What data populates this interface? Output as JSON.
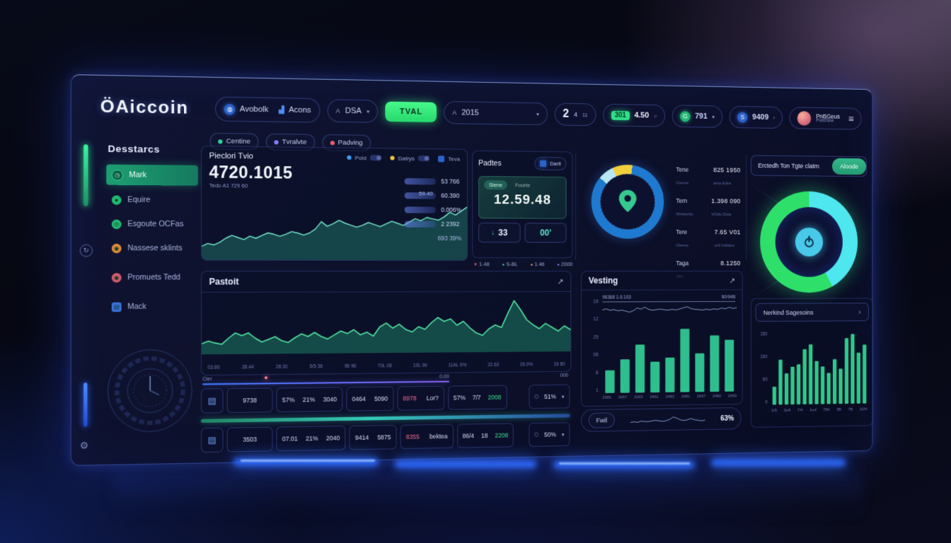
{
  "header": {
    "logo": "ÖAiccoin",
    "nav_group": [
      {
        "label": "Avobolk"
      },
      {
        "label": "Acons"
      }
    ],
    "dsa": {
      "prefix": "A",
      "label": "DSA"
    },
    "tval": "TVAL",
    "year": {
      "prefix": "A",
      "label": "2015"
    },
    "stat": {
      "big": "2",
      "s1": "4",
      "s2": "11"
    },
    "price": {
      "badge": "301",
      "value": "4.50"
    },
    "g791": "791",
    "b9409": "9409",
    "profile": {
      "name": "PnBGeus",
      "sub": "Puechow"
    }
  },
  "subnav": [
    {
      "label": "Centine",
      "color": "#2fd79a"
    },
    {
      "label": "Tvralvte",
      "color": "#8a7df2"
    },
    {
      "label": "Padving",
      "color": "#f25d6d"
    }
  ],
  "sidebar": {
    "title": "Desstarcs",
    "items": [
      {
        "label": "Mark"
      },
      {
        "label": "Equire"
      },
      {
        "label": "Esgoute OCFas"
      },
      {
        "label": "Nassese sklints"
      },
      {
        "label": "Promuets Tedd"
      },
      {
        "label": "Mack"
      }
    ]
  },
  "main_panel": {
    "title": "Pieclori Tvio",
    "legend": [
      {
        "label": "Poid"
      },
      {
        "label": "Datrys"
      },
      {
        "label": "Teva"
      }
    ],
    "big": "4720.1015",
    "sub": "Tedo A1 729 60",
    "float_value": "59.40",
    "pills": [
      {
        "value": "53 766"
      },
      {
        "value": "60.390"
      },
      {
        "value": "0.006%"
      },
      {
        "value": "2 2392"
      }
    ],
    "footer": "693 39%"
  },
  "padtes": {
    "title": "Padtes",
    "button": "Dartl",
    "tab1": "Siene",
    "tab2": "Fourte",
    "big": "12.59.48",
    "box1": "33",
    "box2": "00'",
    "legend": [
      {
        "label": "1.48"
      },
      {
        "label": "S-BL"
      },
      {
        "label": "1.46"
      },
      {
        "label": "2000"
      }
    ]
  },
  "donut_stats": {
    "rows": [
      {
        "label": "Tene",
        "sub": "Cremo",
        "value": "825 1950",
        "vsub": "arva  Edra"
      },
      {
        "label": "Tern",
        "sub": "Wrelecho",
        "value": "1.398 090",
        "vsub": "VOds  Disty"
      },
      {
        "label": "Tere",
        "sub": "Otsrep",
        "value": "7.65 V01",
        "vsub": "ord  Indidos"
      },
      {
        "label": "Taga",
        "sub": "2Brr",
        "value": "8.1250",
        "vsub": ""
      }
    ]
  },
  "gauge_panel": {
    "title": "Erctedh Ton Tgte clatm",
    "button": "Aloode"
  },
  "pastoit": {
    "title": "Pastoit"
  },
  "vesting": {
    "title": "Vesting",
    "top_left": "96368 1-0.103",
    "top_right": "60/94B",
    "footer_chip": "Fwil",
    "footer_pct": "63%"
  },
  "nerkind": {
    "title": "Nerkind Sagesoins"
  },
  "table": {
    "progress_label": "Cler",
    "progress_value": "0.00",
    "progress_right": "000",
    "rows": [
      {
        "id": "9738",
        "p1": "57%",
        "p2": "21%",
        "p3": "3040",
        "q1": "0464",
        "q2": "5090",
        "a1": "8978",
        "a2": "Lor?",
        "t1": "57%",
        "t2": "7/7",
        "t3": "2008",
        "dd": "51%"
      },
      {
        "id": "3503",
        "p1": "07.01",
        "p2": "21%",
        "p3": "2040",
        "q1": "9414",
        "q2": "5875",
        "a1": "8355",
        "a2": "bektea",
        "t1": "86/4",
        "t2": "18",
        "t3": "2208",
        "dd": "50%"
      }
    ]
  },
  "icons": {
    "arrow": "↗",
    "chev": "›",
    "caret": "▾",
    "burger": "≡",
    "down": "↓",
    "gear": "⚙",
    "doc": "▤",
    "circle": "○",
    "refresh": "↻",
    "tri": "▼",
    "dot": "●"
  },
  "colors": {
    "accent_green": "#2fe08a",
    "accent_cyan": "#4ee6ef",
    "accent_blue": "#2e6bff",
    "alert": "#f06a8a"
  },
  "chart_data": [
    {
      "id": "main-area",
      "type": "area",
      "max": 92,
      "values": [
        18,
        22,
        20,
        24,
        30,
        34,
        31,
        28,
        33,
        30,
        34,
        38,
        36,
        33,
        36,
        40,
        38,
        35,
        38,
        44,
        55,
        48,
        52,
        57,
        53,
        50,
        47,
        50,
        54,
        51,
        48,
        52,
        56,
        53,
        50,
        55,
        60,
        57,
        62,
        60,
        58,
        63,
        70,
        66,
        72,
        78
      ],
      "color": "#72e8c8",
      "fill": "rgba(47,190,150,0.30)",
      "sw": 1.4,
      "title": "Pieclori Tvio",
      "xlabel": "",
      "ylabel": ""
    },
    {
      "id": "pastoit-area",
      "type": "area",
      "max": 86,
      "values": [
        14,
        18,
        15,
        13,
        22,
        30,
        26,
        30,
        22,
        16,
        20,
        24,
        18,
        15,
        22,
        28,
        24,
        30,
        24,
        20,
        26,
        32,
        28,
        34,
        26,
        30,
        24,
        38,
        44,
        36,
        42,
        34,
        30,
        38,
        34,
        44,
        52,
        46,
        50,
        40,
        46,
        36,
        28,
        24,
        34,
        40,
        36,
        58,
        78,
        64,
        48,
        40,
        34,
        42,
        36,
        30,
        38,
        32
      ],
      "x_labels": [
        "03.80",
        "28.44",
        "28.30",
        "5/5 36",
        "96 96",
        "70L 08",
        "10L 99",
        "11AL 9%",
        "22.63",
        "26.9%",
        "16 80"
      ],
      "color": "#4fe3a1",
      "fill": "rgba(40,200,140,0.32)",
      "sw": 1.6,
      "title": "Pastoit",
      "xlabel": "",
      "ylabel": ""
    },
    {
      "id": "vesting-bars",
      "type": "bar",
      "max": 100,
      "values": [
        34,
        50,
        72,
        46,
        52,
        95,
        58,
        85,
        78
      ],
      "categories": [
        "1980",
        "2457",
        "2003",
        "2461",
        "2483",
        "2481",
        "2547",
        "2480",
        "2460"
      ],
      "y_ticks": [
        "18",
        "12",
        "25",
        "08",
        "8",
        "1"
      ],
      "color": "#2fbf8f",
      "title": "Vesting",
      "ylim": [
        0,
        100
      ]
    },
    {
      "id": "vesting-line",
      "type": "line",
      "max": 80,
      "values": [
        55,
        60,
        52,
        56,
        50,
        53,
        48,
        42,
        50,
        64,
        58,
        68,
        56,
        52,
        55,
        58,
        54,
        52,
        56,
        53,
        58,
        64,
        70,
        60,
        56,
        54,
        52,
        56,
        53,
        58,
        55,
        62,
        58,
        66,
        60,
        64
      ],
      "color": "#a8bce8",
      "sw": 0.8
    },
    {
      "id": "nerkind-bars",
      "type": "bar",
      "max": 185,
      "values": [
        45,
        112,
        78,
        94,
        100,
        138,
        150,
        108,
        94,
        78,
        112,
        88,
        165,
        175,
        128,
        148
      ],
      "categories": [
        "1/9",
        "2e8",
        "7/4",
        "1ud",
        "784",
        "3B",
        "7B",
        "10%"
      ],
      "y_ticks": [
        "150",
        "100",
        "50",
        "0"
      ],
      "color": "#2fc98c",
      "title": "Nerkind Sagesoins",
      "ylim": [
        0,
        185
      ]
    },
    {
      "id": "fwil-spark",
      "type": "line",
      "max": 14,
      "values": [
        4,
        5,
        4,
        6,
        5,
        5,
        6,
        7,
        6,
        5,
        6,
        8,
        12,
        10,
        7,
        6,
        7,
        9,
        7,
        6,
        5,
        6
      ],
      "color": "#8fa6d8",
      "sw": 0.9
    },
    {
      "id": "padtes-donut",
      "type": "pie",
      "from": -50,
      "segments": [
        {
          "label": "seg-light",
          "value": 7,
          "color": "#b8e6f5"
        },
        {
          "label": "seg-yellow",
          "value": 9,
          "color": "#f2cf3d"
        },
        {
          "label": "seg-blue",
          "value": 84,
          "color": "#1e7ad0"
        }
      ]
    },
    {
      "id": "claim-gauge",
      "type": "pie",
      "from": 0,
      "segments": [
        {
          "label": "claimed",
          "value": 42,
          "color": "#4ee6ef"
        },
        {
          "label": "remaining",
          "value": 58,
          "color": "#2ee06a"
        }
      ]
    }
  ]
}
